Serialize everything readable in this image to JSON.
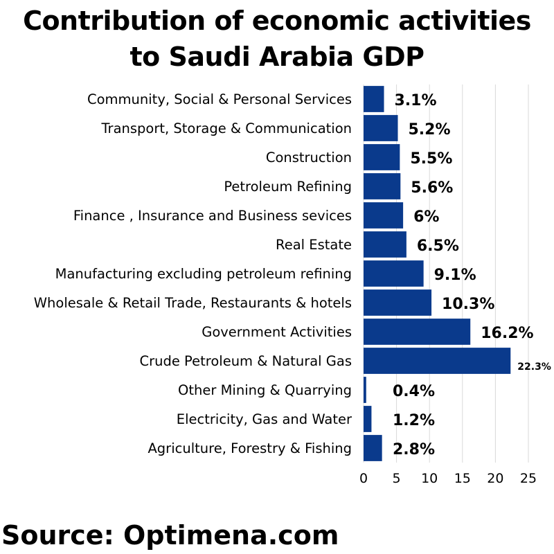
{
  "title_line1": "Contribution of economic activities",
  "title_line2": "to Saudi Arabia GDP",
  "source": "Source: Optimena.com",
  "colors": {
    "bar": "#0a3a8c",
    "grid": "#d9d9d9",
    "text": "#000000"
  },
  "chart_data": {
    "type": "bar",
    "orientation": "horizontal",
    "title": "Contribution of economic activities to Saudi Arabia GDP",
    "categories": [
      "Community, Social & Personal Services",
      "Transport, Storage & Communication",
      "Construction",
      "Petroleum Refining",
      "Finance , Insurance and Business sevices",
      "Real Estate",
      "Manufacturing excluding petroleum refining",
      "Wholesale & Retail Trade, Restaurants & hotels",
      "Government Activities",
      "Crude Petroleum & Natural Gas",
      "Other Mining & Quarrying",
      "Electricity, Gas and Water",
      "Agriculture, Forestry & Fishing"
    ],
    "values": [
      3.1,
      5.2,
      5.5,
      5.6,
      6,
      6.5,
      9.1,
      10.3,
      16.2,
      22.3,
      0.4,
      1.2,
      2.8
    ],
    "data_labels": [
      "3.1%",
      "5.2%",
      "5.5%",
      "5.6%",
      "6%",
      "6.5%",
      "9.1%",
      "10.3%",
      "16.2%",
      "22.3%",
      "0.4%",
      "1.2%",
      "2.8%"
    ],
    "x_ticks": [
      0,
      5,
      10,
      15,
      20,
      25
    ],
    "xlim": [
      0,
      25
    ],
    "grid": true,
    "legend": "none"
  }
}
